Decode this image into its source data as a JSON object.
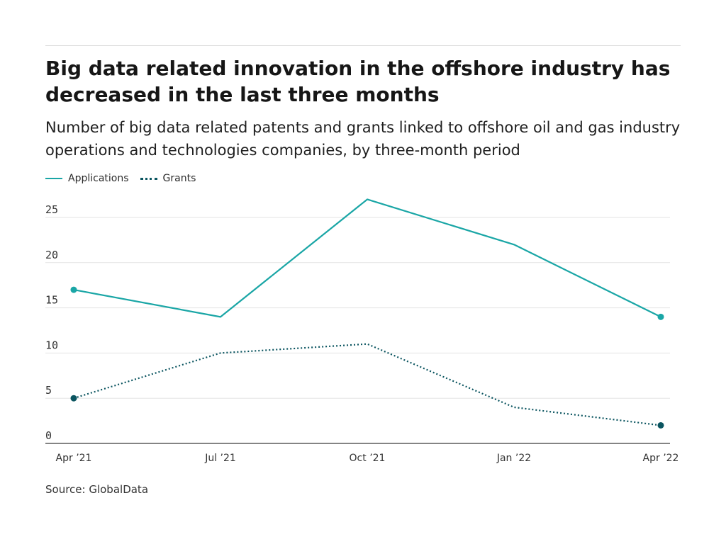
{
  "title": "Big data related innovation in the offshore industry has decreased in the last three months",
  "subtitle": "Number of big data related patents and grants linked to offshore oil and gas industry operations and technologies companies, by three-month period",
  "source": "Source: GlobalData",
  "colors": {
    "applications": "#1aa6a6",
    "grants": "#0b5560",
    "grid": "#e3e3e3",
    "axis": "#3a3a3a"
  },
  "chart_data": {
    "type": "line",
    "categories": [
      "Apr ’21",
      "Jul ’21",
      "Oct ’21",
      "Jan ’22",
      "Apr ’22"
    ],
    "series": [
      {
        "name": "Applications",
        "style": "solid",
        "values": [
          17,
          14,
          27,
          22,
          14
        ]
      },
      {
        "name": "Grants",
        "style": "dotted",
        "values": [
          5,
          10,
          11,
          4,
          2
        ]
      }
    ],
    "yticks": [
      0,
      5,
      10,
      15,
      20,
      25
    ],
    "ylim": [
      0,
      27
    ],
    "xlabel": "",
    "ylabel": "",
    "grid": true,
    "legend_position": "top-left"
  }
}
